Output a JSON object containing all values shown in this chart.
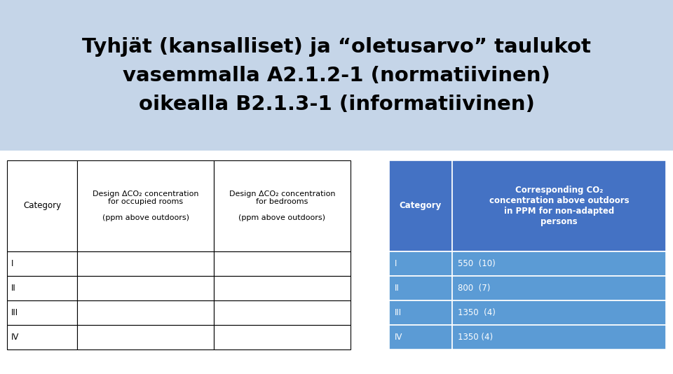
{
  "title_line1": "Tyhjät (kansalliset) ja “oletusarvo” taulukot",
  "title_line2": "vasemmalla A2.1.2-1 (normatiivinen)",
  "title_line3": "oikealla B2.1.3-1 (informatiivinen)",
  "title_bg": "#c5d5e8",
  "bg_color": "#ffffff",
  "left_table": {
    "headers": [
      "Category",
      "Design ΔCO₂ concentration\nfor occupied rooms\n\n(ppm above outdoors)",
      "Design ΔCO₂ concentration\nfor bedrooms\n\n(ppm above outdoors)"
    ],
    "row_labels": [
      "I",
      "II",
      "III",
      "IV"
    ]
  },
  "right_table": {
    "header_col1": "Category",
    "header_col2": "Corresponding CO₂\nconcentration above outdoors\nin PPM for non-adapted\npersons",
    "header_bg": "#4472c4",
    "header_text_color": "#ffffff",
    "row_bg": "#5b9bd5",
    "row_text_color": "#ffffff",
    "rows": [
      [
        "I",
        "550  (10)"
      ],
      [
        "II",
        "800  (7)"
      ],
      [
        "III",
        "1350  (4)"
      ],
      [
        "IV",
        "1350 (4)"
      ]
    ]
  }
}
